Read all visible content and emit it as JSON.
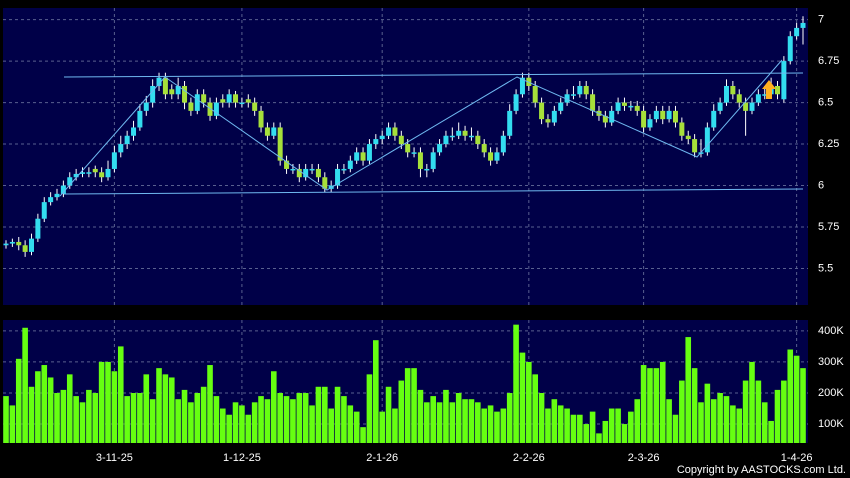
{
  "chart_data": {
    "type": "candlestick",
    "categories": [
      null,
      null,
      null,
      null,
      null,
      null,
      null,
      null,
      null,
      null,
      null,
      null,
      null,
      null,
      null,
      null,
      null,
      "3-11-25",
      null,
      null,
      null,
      null,
      null,
      null,
      null,
      null,
      null,
      null,
      null,
      null,
      null,
      null,
      null,
      null,
      null,
      null,
      null,
      "1-12-25",
      null,
      null,
      null,
      null,
      null,
      null,
      null,
      null,
      null,
      null,
      null,
      null,
      null,
      null,
      null,
      null,
      null,
      null,
      null,
      null,
      null,
      "2-1-26",
      null,
      null,
      null,
      null,
      null,
      null,
      null,
      null,
      null,
      null,
      null,
      null,
      null,
      null,
      null,
      null,
      null,
      null,
      null,
      null,
      null,
      null,
      "2-2-26",
      null,
      null,
      null,
      null,
      null,
      null,
      null,
      null,
      null,
      null,
      null,
      null,
      null,
      null,
      null,
      null,
      null,
      "2-3-26",
      null,
      null,
      null,
      null,
      null,
      null,
      null,
      null,
      null,
      null,
      null,
      null,
      null,
      null,
      null,
      null,
      null,
      null,
      null,
      null,
      null,
      null,
      null,
      "1-4-26",
      null
    ],
    "ohlc": [
      [
        5.64,
        5.67,
        5.62,
        5.65
      ],
      [
        5.65,
        5.68,
        5.63,
        5.66
      ],
      [
        5.66,
        5.69,
        5.61,
        5.64
      ],
      [
        5.64,
        5.67,
        5.57,
        5.6
      ],
      [
        5.6,
        5.71,
        5.58,
        5.68
      ],
      [
        5.68,
        5.83,
        5.66,
        5.8
      ],
      [
        5.8,
        5.93,
        5.78,
        5.9
      ],
      [
        5.9,
        5.96,
        5.88,
        5.93
      ],
      [
        5.93,
        5.98,
        5.91,
        5.95
      ],
      [
        5.95,
        6.03,
        5.93,
        6.0
      ],
      [
        6.0,
        6.08,
        5.98,
        6.05
      ],
      [
        6.05,
        6.1,
        6.03,
        6.07
      ],
      [
        6.07,
        6.11,
        6.05,
        6.08
      ],
      [
        6.08,
        6.11,
        6.05,
        6.08
      ],
      [
        6.1,
        6.12,
        6.05,
        6.08
      ],
      [
        6.08,
        6.11,
        6.02,
        6.05
      ],
      [
        6.05,
        6.15,
        6.03,
        6.1
      ],
      [
        6.1,
        6.24,
        6.08,
        6.2
      ],
      [
        6.2,
        6.3,
        6.17,
        6.25
      ],
      [
        6.25,
        6.33,
        6.22,
        6.3
      ],
      [
        6.3,
        6.39,
        6.27,
        6.35
      ],
      [
        6.35,
        6.49,
        6.33,
        6.45
      ],
      [
        6.45,
        6.54,
        6.42,
        6.5
      ],
      [
        6.5,
        6.64,
        6.47,
        6.6
      ],
      [
        6.6,
        6.68,
        6.57,
        6.65
      ],
      [
        6.65,
        6.68,
        6.52,
        6.55
      ],
      [
        6.58,
        6.61,
        6.52,
        6.55
      ],
      [
        6.55,
        6.65,
        6.52,
        6.6
      ],
      [
        6.6,
        6.63,
        6.46,
        6.5
      ],
      [
        6.5,
        6.53,
        6.42,
        6.45
      ],
      [
        6.45,
        6.58,
        6.43,
        6.55
      ],
      [
        6.55,
        6.58,
        6.47,
        6.5
      ],
      [
        6.5,
        6.53,
        6.39,
        6.42
      ],
      [
        6.42,
        6.53,
        6.4,
        6.5
      ],
      [
        6.52,
        6.55,
        6.47,
        6.5
      ],
      [
        6.5,
        6.58,
        6.47,
        6.55
      ],
      [
        6.55,
        6.57,
        6.47,
        6.5
      ],
      [
        6.5,
        6.53,
        6.47,
        6.5
      ],
      [
        6.52,
        6.55,
        6.47,
        6.5
      ],
      [
        6.5,
        6.53,
        6.42,
        6.45
      ],
      [
        6.45,
        6.48,
        6.32,
        6.35
      ],
      [
        6.35,
        6.38,
        6.27,
        6.3
      ],
      [
        6.3,
        6.38,
        6.28,
        6.35
      ],
      [
        6.35,
        6.38,
        6.12,
        6.15
      ],
      [
        6.15,
        6.18,
        6.07,
        6.1
      ],
      [
        6.1,
        6.13,
        6.07,
        6.1
      ],
      [
        6.1,
        6.13,
        6.02,
        6.05
      ],
      [
        6.05,
        6.13,
        6.03,
        6.1
      ],
      [
        6.1,
        6.13,
        6.07,
        6.1
      ],
      [
        6.1,
        6.13,
        6.02,
        6.05
      ],
      [
        6.05,
        6.08,
        5.96,
        5.98
      ],
      [
        5.98,
        6.03,
        5.96,
        6.0
      ],
      [
        6.0,
        6.13,
        5.98,
        6.1
      ],
      [
        6.1,
        6.13,
        6.07,
        6.1
      ],
      [
        6.1,
        6.18,
        6.08,
        6.15
      ],
      [
        6.15,
        6.23,
        6.13,
        6.2
      ],
      [
        6.2,
        6.23,
        6.12,
        6.15
      ],
      [
        6.15,
        6.28,
        6.13,
        6.25
      ],
      [
        6.25,
        6.31,
        6.22,
        6.28
      ],
      [
        6.28,
        6.33,
        6.25,
        6.3
      ],
      [
        6.3,
        6.38,
        6.28,
        6.35
      ],
      [
        6.35,
        6.38,
        6.27,
        6.3
      ],
      [
        6.3,
        6.33,
        6.22,
        6.25
      ],
      [
        6.25,
        6.28,
        6.17,
        6.2
      ],
      [
        6.2,
        6.23,
        6.17,
        6.2
      ],
      [
        6.2,
        6.23,
        6.05,
        6.1
      ],
      [
        6.1,
        6.13,
        6.05,
        6.1
      ],
      [
        6.1,
        6.23,
        6.08,
        6.2
      ],
      [
        6.2,
        6.28,
        6.18,
        6.25
      ],
      [
        6.25,
        6.33,
        6.23,
        6.3
      ],
      [
        6.3,
        6.35,
        6.27,
        6.3
      ],
      [
        6.3,
        6.38,
        6.28,
        6.33
      ],
      [
        6.33,
        6.36,
        6.27,
        6.3
      ],
      [
        6.3,
        6.35,
        6.27,
        6.3
      ],
      [
        6.3,
        6.33,
        6.22,
        6.25
      ],
      [
        6.25,
        6.28,
        6.17,
        6.2
      ],
      [
        6.2,
        6.23,
        6.12,
        6.15
      ],
      [
        6.15,
        6.23,
        6.13,
        6.2
      ],
      [
        6.2,
        6.33,
        6.18,
        6.3
      ],
      [
        6.3,
        6.49,
        6.28,
        6.45
      ],
      [
        6.45,
        6.58,
        6.43,
        6.55
      ],
      [
        6.55,
        6.68,
        6.53,
        6.65
      ],
      [
        6.65,
        6.68,
        6.57,
        6.6
      ],
      [
        6.6,
        6.63,
        6.47,
        6.5
      ],
      [
        6.5,
        6.53,
        6.37,
        6.4
      ],
      [
        6.4,
        6.43,
        6.35,
        6.38
      ],
      [
        6.38,
        6.48,
        6.36,
        6.45
      ],
      [
        6.45,
        6.53,
        6.43,
        6.5
      ],
      [
        6.5,
        6.58,
        6.48,
        6.55
      ],
      [
        6.55,
        6.6,
        6.52,
        6.55
      ],
      [
        6.55,
        6.63,
        6.53,
        6.6
      ],
      [
        6.6,
        6.63,
        6.52,
        6.55
      ],
      [
        6.55,
        6.58,
        6.42,
        6.45
      ],
      [
        6.45,
        6.48,
        6.39,
        6.42
      ],
      [
        6.42,
        6.45,
        6.35,
        6.38
      ],
      [
        6.38,
        6.48,
        6.36,
        6.45
      ],
      [
        6.45,
        6.53,
        6.43,
        6.5
      ],
      [
        6.5,
        6.53,
        6.45,
        6.48
      ],
      [
        6.48,
        6.51,
        6.45,
        6.48
      ],
      [
        6.48,
        6.51,
        6.42,
        6.45
      ],
      [
        6.45,
        6.48,
        6.32,
        6.35
      ],
      [
        6.35,
        6.43,
        6.33,
        6.4
      ],
      [
        6.4,
        6.48,
        6.38,
        6.45
      ],
      [
        6.45,
        6.48,
        6.37,
        6.4
      ],
      [
        6.4,
        6.48,
        6.38,
        6.45
      ],
      [
        6.45,
        6.48,
        6.35,
        6.38
      ],
      [
        6.38,
        6.41,
        6.27,
        6.3
      ],
      [
        6.3,
        6.33,
        6.25,
        6.28
      ],
      [
        6.28,
        6.31,
        6.17,
        6.2
      ],
      [
        6.2,
        6.28,
        6.17,
        6.2
      ],
      [
        6.2,
        6.38,
        6.18,
        6.35
      ],
      [
        6.35,
        6.49,
        6.33,
        6.45
      ],
      [
        6.45,
        6.53,
        6.43,
        6.5
      ],
      [
        6.5,
        6.64,
        6.48,
        6.6
      ],
      [
        6.6,
        6.63,
        6.52,
        6.55
      ],
      [
        6.55,
        6.58,
        6.47,
        6.5
      ],
      [
        6.5,
        6.53,
        6.3,
        6.45
      ],
      [
        6.45,
        6.53,
        6.43,
        6.5
      ],
      [
        6.5,
        6.58,
        6.48,
        6.55
      ],
      [
        6.55,
        6.6,
        6.52,
        6.55
      ],
      [
        6.55,
        6.65,
        6.53,
        6.6
      ],
      [
        6.6,
        6.63,
        6.52,
        6.55
      ],
      [
        6.52,
        6.78,
        6.5,
        6.75
      ],
      [
        6.75,
        6.93,
        6.73,
        6.9
      ],
      [
        6.9,
        6.98,
        6.88,
        6.95
      ],
      [
        6.95,
        7.02,
        6.85,
        6.98
      ]
    ],
    "up_color": "#33ddf0",
    "down_color": "#a6e03a",
    "ylim": [
      5.28,
      7.07
    ],
    "yticks": [
      5.5,
      5.75,
      6,
      6.25,
      6.5,
      6.75,
      7
    ],
    "grid": true,
    "volume": {
      "color": "#66ff11",
      "values": [
        190000,
        160000,
        310000,
        410000,
        220000,
        270000,
        290000,
        250000,
        200000,
        210000,
        260000,
        190000,
        170000,
        210000,
        200000,
        300000,
        300000,
        270000,
        350000,
        190000,
        200000,
        200000,
        260000,
        180000,
        280000,
        260000,
        250000,
        180000,
        210000,
        170000,
        200000,
        220000,
        290000,
        190000,
        150000,
        130000,
        170000,
        160000,
        130000,
        170000,
        190000,
        180000,
        270000,
        200000,
        190000,
        180000,
        200000,
        200000,
        160000,
        220000,
        220000,
        150000,
        220000,
        190000,
        160000,
        140000,
        90000,
        260000,
        370000,
        140000,
        220000,
        150000,
        240000,
        280000,
        280000,
        210000,
        170000,
        190000,
        170000,
        210000,
        170000,
        200000,
        180000,
        180000,
        170000,
        150000,
        160000,
        140000,
        150000,
        200000,
        420000,
        330000,
        300000,
        260000,
        200000,
        150000,
        180000,
        160000,
        150000,
        130000,
        130000,
        100000,
        140000,
        70000,
        110000,
        150000,
        150000,
        100000,
        140000,
        180000,
        290000,
        280000,
        280000,
        300000,
        180000,
        130000,
        240000,
        380000,
        280000,
        170000,
        230000,
        180000,
        200000,
        190000,
        160000,
        150000,
        240000,
        300000,
        240000,
        170000,
        110000,
        210000,
        240000,
        340000,
        320000,
        280000
      ],
      "ylim": [
        39000,
        435000
      ],
      "yticks": [
        {
          "value": 100000,
          "label": "100K"
        },
        {
          "value": 200000,
          "label": "200K"
        },
        {
          "value": 300000,
          "label": "300K"
        },
        {
          "value": 400000,
          "label": "400K"
        }
      ]
    }
  },
  "footer": {
    "copyright": "Copyright by AASTOCKS.com Ltd."
  }
}
